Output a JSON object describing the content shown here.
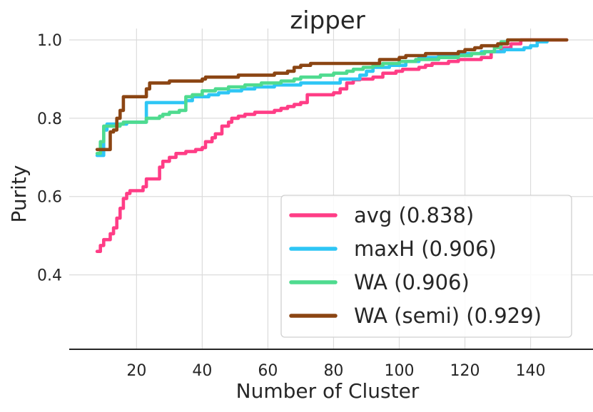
{
  "chart_data": {
    "type": "line",
    "title": "zipper",
    "xlabel": "Number of Cluster",
    "ylabel": "Purity",
    "xlim": [
      -0.5,
      159
    ],
    "ylim": [
      0.21,
      1.0
    ],
    "xticks": [
      20,
      40,
      60,
      80,
      100,
      120,
      140
    ],
    "yticks": [
      0.4,
      0.6,
      0.8,
      1.0
    ],
    "xtick_labels": [
      "20",
      "40",
      "60",
      "80",
      "100",
      "120",
      "140"
    ],
    "ytick_labels": [
      "0.4",
      "0.6",
      "0.8",
      "1.0"
    ],
    "grid": true,
    "legend_position": "lower-right",
    "series": [
      {
        "name": "avg (0.838)",
        "color": "#ff3d86",
        "x": [
          8,
          9,
          10,
          11,
          12,
          13,
          14,
          15,
          16,
          17,
          18,
          20,
          22,
          23,
          26,
          27,
          28,
          30,
          32,
          35,
          38,
          40,
          41,
          43,
          44,
          46,
          48,
          49,
          51,
          53,
          56,
          60,
          62,
          64,
          66,
          68,
          70,
          72,
          75,
          80,
          82,
          84,
          86,
          88,
          90,
          92,
          95,
          99,
          101,
          104,
          106,
          108,
          110,
          115,
          118,
          125,
          128,
          131,
          134,
          137,
          151
        ],
        "y": [
          0.46,
          0.475,
          0.49,
          0.49,
          0.505,
          0.52,
          0.545,
          0.57,
          0.595,
          0.608,
          0.615,
          0.615,
          0.625,
          0.645,
          0.645,
          0.675,
          0.69,
          0.7,
          0.71,
          0.715,
          0.72,
          0.725,
          0.74,
          0.75,
          0.76,
          0.78,
          0.79,
          0.8,
          0.805,
          0.81,
          0.815,
          0.815,
          0.82,
          0.825,
          0.83,
          0.835,
          0.84,
          0.86,
          0.86,
          0.865,
          0.875,
          0.89,
          0.898,
          0.9,
          0.9,
          0.905,
          0.915,
          0.92,
          0.925,
          0.925,
          0.93,
          0.935,
          0.94,
          0.945,
          0.95,
          0.955,
          0.97,
          0.98,
          0.99,
          1.0,
          1.0
        ]
      },
      {
        "name": "maxH (0.906)",
        "color": "#2ec6f5",
        "x": [
          8,
          9,
          10,
          11,
          16,
          17,
          22,
          23,
          25,
          35,
          37,
          42,
          45,
          48,
          52,
          56,
          62,
          70,
          82,
          86,
          88,
          90,
          92,
          97,
          102,
          106,
          112,
          118,
          125,
          132,
          138,
          140,
          142,
          145
        ],
        "y": [
          0.705,
          0.705,
          0.77,
          0.785,
          0.785,
          0.79,
          0.79,
          0.84,
          0.84,
          0.845,
          0.855,
          0.86,
          0.865,
          0.87,
          0.875,
          0.88,
          0.885,
          0.89,
          0.9,
          0.9,
          0.91,
          0.92,
          0.93,
          0.935,
          0.945,
          0.955,
          0.96,
          0.965,
          0.97,
          0.975,
          0.98,
          0.985,
          0.995,
          0.995
        ]
      },
      {
        "name": "WA (0.906)",
        "color": "#4fdb8f",
        "x": [
          8,
          9,
          10,
          15,
          16,
          22,
          23,
          27,
          28,
          30,
          33,
          35,
          37,
          40,
          44,
          48,
          53,
          58,
          64,
          68,
          70,
          76,
          80,
          84,
          86,
          89,
          92,
          95,
          100,
          105,
          112,
          118,
          122,
          126,
          129,
          131,
          133
        ],
        "y": [
          0.71,
          0.74,
          0.78,
          0.785,
          0.79,
          0.79,
          0.8,
          0.805,
          0.81,
          0.815,
          0.82,
          0.855,
          0.86,
          0.87,
          0.875,
          0.88,
          0.885,
          0.89,
          0.895,
          0.9,
          0.905,
          0.91,
          0.915,
          0.92,
          0.925,
          0.93,
          0.935,
          0.94,
          0.945,
          0.95,
          0.955,
          0.96,
          0.965,
          0.97,
          0.98,
          0.995,
          1.0
        ]
      },
      {
        "name": "WA (semi) (0.929)",
        "color": "#8b4513",
        "x": [
          8,
          11,
          12,
          13,
          14,
          15,
          16,
          22,
          23,
          24,
          30,
          31,
          40,
          41,
          45,
          51,
          62,
          66,
          68,
          70,
          73,
          90,
          94,
          100,
          102,
          108,
          118,
          120,
          123,
          125,
          127,
          130,
          133,
          140,
          151
        ],
        "y": [
          0.72,
          0.72,
          0.765,
          0.77,
          0.8,
          0.82,
          0.855,
          0.855,
          0.875,
          0.89,
          0.895,
          0.895,
          0.9,
          0.905,
          0.905,
          0.91,
          0.915,
          0.92,
          0.93,
          0.935,
          0.94,
          0.94,
          0.95,
          0.955,
          0.96,
          0.965,
          0.97,
          0.975,
          0.98,
          0.985,
          0.985,
          0.99,
          1.0,
          1.0,
          1.0
        ]
      }
    ]
  }
}
